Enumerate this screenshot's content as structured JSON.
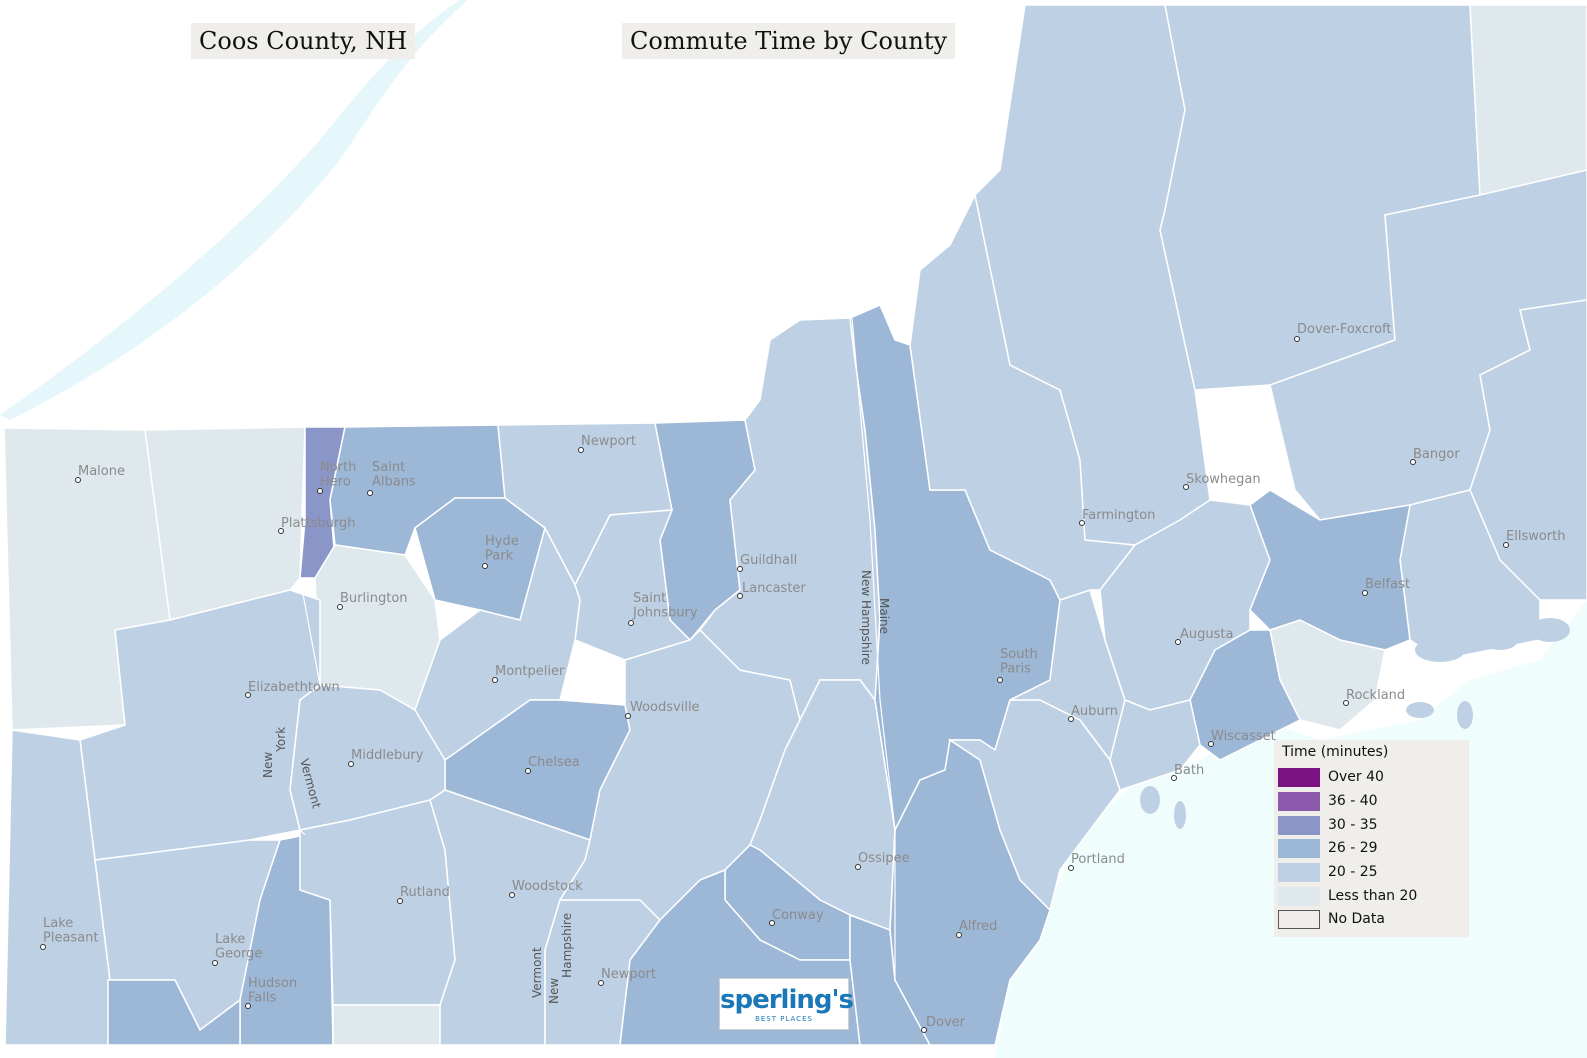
{
  "header": {
    "region_title": "Coos County, NH",
    "map_title": "Commute Time by County"
  },
  "colors": {
    "over_40": "#7b1382",
    "36_40": "#8b5aad",
    "30_35": "#8b96c8",
    "26_29": "#9db7d7",
    "20_25": "#bed0e4",
    "less_than_20": "#dfe9ed",
    "no_data": "#efeeea",
    "water": "#f0fdfd",
    "border": "#ffffff"
  },
  "legend": {
    "title": "Time  (minutes)",
    "items": [
      {
        "label": "Over 40",
        "color": "#7b1382"
      },
      {
        "label": "36 - 40",
        "color": "#8b5aad"
      },
      {
        "label": "30 - 35",
        "color": "#8b96c8"
      },
      {
        "label": "26 - 29",
        "color": "#9db7d7"
      },
      {
        "label": "20 - 25",
        "color": "#bed0e4"
      },
      {
        "label": "Less than 20",
        "color": "#dfe9ed"
      },
      {
        "label": "No Data",
        "color": "#efeeea"
      }
    ]
  },
  "cities": {
    "malone": "Malone",
    "newport_vt": "Newport",
    "plattsburgh": "Plattsburgh",
    "north_hero": "North\nHero",
    "saint_albans": "Saint\nAlbans",
    "hyde_park": "Hyde\nPark",
    "burlington": "Burlington",
    "guildhall": "Guildhall",
    "lancaster": "Lancaster",
    "saint_johnsbury": "Saint\nJohnsbury",
    "montpelier": "Montpelier",
    "elizabethtown": "Elizabethtown",
    "woodsville": "Woodsville",
    "middlebury": "Middlebury",
    "chelsea": "Chelsea",
    "rutland": "Rutland",
    "woodstock": "Woodstock",
    "lake_pleasant": "Lake\nPleasant",
    "lake_george": "Lake\nGeorge",
    "hudson_falls": "Hudson\nFalls",
    "newport_nh": "Newport",
    "dover_foxcroft": "Dover-Foxcroft",
    "skowhegan": "Skowhegan",
    "bangor": "Bangor",
    "farmington": "Farmington",
    "ellsworth": "Ellsworth",
    "belfast": "Belfast",
    "augusta": "Augusta",
    "south_paris": "South\nParis",
    "rockland": "Rockland",
    "auburn": "Auburn",
    "wiscasset": "Wiscasset",
    "bath": "Bath",
    "ossipee": "Ossipee",
    "portland": "Portland",
    "conway": "Conway",
    "alfred": "Alfred",
    "dover": "Dover"
  },
  "state_labels": {
    "new_hampshire_north": "New Hampshire",
    "maine": "Maine",
    "vermont_west": "Vermont",
    "new_york": "New\nYork",
    "vermont_south": "Vermont",
    "new_hampshire_south": "New\nHampshire"
  },
  "logo": {
    "brand": "sperling's",
    "tagline": "BEST PLACES"
  }
}
